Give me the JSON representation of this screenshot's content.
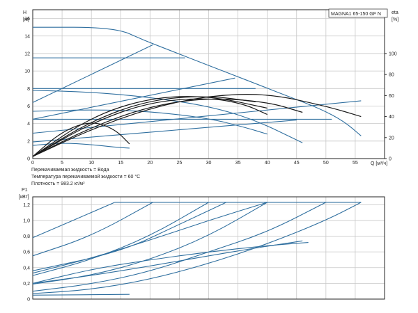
{
  "chart_data": [
    {
      "type": "line",
      "title": "MAGNA1 65-150 GF N",
      "ylabel": "H",
      "ylabel_unit": "[м]",
      "xlabel": "Q [м³/ч]",
      "y2label": "eta",
      "y2label_unit": "[%]",
      "xlim": [
        0,
        60
      ],
      "ylim": [
        0,
        17
      ],
      "y2lim": [
        0,
        100
      ],
      "x_ticks": [
        "0",
        "5",
        "10",
        "15",
        "20",
        "25",
        "30",
        "35",
        "40",
        "45",
        "50",
        "55"
      ],
      "y_ticks": [
        "0",
        "2",
        "4",
        "6",
        "8",
        "10",
        "12",
        "14",
        "16"
      ],
      "y2_ticks": [
        "0",
        "20",
        "40",
        "60",
        "80",
        "100"
      ],
      "grid": true,
      "notes": [
        "Перекачиваемая жидкость = Вода",
        "Температура перекачиваемой жидкости = 60 °C",
        "Плотность = 983.2 кг/м³"
      ],
      "series": [
        {
          "name": "H max",
          "kind": "head",
          "x": [
            0,
            14,
            19,
            24,
            29,
            34,
            39,
            44,
            49,
            53,
            56
          ],
          "y": [
            15,
            15,
            13.5,
            12.2,
            10.9,
            9.6,
            8.3,
            7,
            5.7,
            4.3,
            2.6
          ]
        },
        {
          "name": "H prop 1",
          "kind": "head",
          "x": [
            0,
            20.5
          ],
          "y": [
            6.4,
            13
          ]
        },
        {
          "name": "H prop 2",
          "kind": "head",
          "x": [
            0,
            34.5
          ],
          "y": [
            4.5,
            9.2
          ]
        },
        {
          "name": "H prop 3",
          "kind": "head",
          "x": [
            0,
            56
          ],
          "y": [
            2.9,
            6.6
          ]
        },
        {
          "name": "H prop 4",
          "kind": "head",
          "x": [
            0,
            45
          ],
          "y": [
            1.9,
            4.4
          ]
        },
        {
          "name": "H const 1",
          "kind": "head",
          "x": [
            0,
            26
          ],
          "y": [
            11.5,
            11.5
          ]
        },
        {
          "name": "H const 2",
          "kind": "head",
          "x": [
            0,
            38
          ],
          "y": [
            8,
            8
          ]
        },
        {
          "name": "H const 3",
          "kind": "head",
          "x": [
            0,
            51
          ],
          "y": [
            4.5,
            4.5
          ]
        },
        {
          "name": "H curve 1",
          "kind": "head",
          "x": [
            0,
            10,
            20,
            30,
            38,
            46
          ],
          "y": [
            7.8,
            7.6,
            7,
            6,
            4.4,
            1.8
          ]
        },
        {
          "name": "H curve 2",
          "kind": "head",
          "x": [
            0,
            10,
            20,
            30,
            36,
            40
          ],
          "y": [
            5.4,
            5.6,
            5.4,
            4.6,
            3.6,
            2.8
          ]
        },
        {
          "name": "H curve 3",
          "kind": "head",
          "x": [
            0,
            5,
            10,
            14,
            16.5
          ],
          "y": [
            1.5,
            1.8,
            1.6,
            1.3,
            1.2
          ]
        },
        {
          "name": "Eta 1",
          "kind": "eta",
          "x": [
            0,
            10,
            20,
            30,
            40,
            50,
            56
          ],
          "y": [
            2,
            28,
            48,
            60,
            62,
            50,
            40
          ]
        },
        {
          "name": "Eta 2",
          "kind": "eta",
          "x": [
            0,
            10,
            20,
            30,
            40,
            46
          ],
          "y": [
            2,
            30,
            50,
            58,
            54,
            44
          ]
        },
        {
          "name": "Eta 3",
          "kind": "eta",
          "x": [
            0,
            10,
            20,
            30,
            36,
            40
          ],
          "y": [
            2,
            34,
            54,
            58,
            52,
            42
          ]
        },
        {
          "name": "Eta 4",
          "kind": "eta",
          "x": [
            0,
            10,
            20,
            30,
            40
          ],
          "y": [
            2,
            40,
            58,
            60,
            48
          ]
        },
        {
          "name": "Eta 5",
          "kind": "eta",
          "x": [
            0,
            5,
            10,
            14,
            16.5
          ],
          "y": [
            2,
            26,
            36,
            28,
            14
          ]
        },
        {
          "name": "Eta 6",
          "kind": "eta",
          "x": [
            0,
            10,
            20,
            30,
            38
          ],
          "y": [
            2,
            36,
            56,
            60,
            54
          ]
        }
      ]
    },
    {
      "type": "line",
      "title": "",
      "ylabel": "P1",
      "ylabel_unit": "[кВт]",
      "xlabel": "",
      "xlim": [
        0,
        60
      ],
      "ylim": [
        0,
        1.3
      ],
      "y_ticks": [
        "0",
        "0,2",
        "0,4",
        "0,6",
        "0,8",
        "1,0",
        "1,2"
      ],
      "grid": true,
      "series": [
        {
          "name": "P limit",
          "x": [
            14,
            56
          ],
          "y": [
            1.23,
            1.23
          ]
        },
        {
          "name": "P1",
          "x": [
            0,
            14
          ],
          "y": [
            0.78,
            1.23
          ]
        },
        {
          "name": "P2",
          "x": [
            0,
            10,
            20.5
          ],
          "y": [
            0.55,
            0.8,
            1.23
          ]
        },
        {
          "name": "P3",
          "x": [
            0,
            10,
            20,
            30
          ],
          "y": [
            0.3,
            0.5,
            0.8,
            1.23
          ]
        },
        {
          "name": "P4",
          "x": [
            0,
            10,
            20,
            30,
            40
          ],
          "y": [
            0.19,
            0.3,
            0.5,
            0.8,
            1.23
          ]
        },
        {
          "name": "P5",
          "x": [
            0,
            10,
            20,
            30,
            40,
            50
          ],
          "y": [
            0.1,
            0.19,
            0.35,
            0.6,
            0.85,
            1.23
          ]
        },
        {
          "name": "P6",
          "x": [
            0,
            10,
            20,
            30,
            40,
            50,
            56
          ],
          "y": [
            0.07,
            0.12,
            0.25,
            0.45,
            0.7,
            1.0,
            1.23
          ]
        },
        {
          "name": "P7",
          "x": [
            0,
            10,
            20,
            30,
            38,
            46
          ],
          "y": [
            0.2,
            0.3,
            0.42,
            0.55,
            0.65,
            0.74
          ]
        },
        {
          "name": "P8",
          "x": [
            0,
            10,
            20,
            30,
            40
          ],
          "y": [
            0.33,
            0.52,
            0.75,
            1.0,
            1.23
          ]
        },
        {
          "name": "P9",
          "x": [
            0,
            15,
            25,
            33
          ],
          "y": [
            0.36,
            0.6,
            0.95,
            1.23
          ]
        },
        {
          "name": "P10",
          "x": [
            0,
            10,
            20,
            30,
            40,
            47
          ],
          "y": [
            0.2,
            0.38,
            0.5,
            0.6,
            0.68,
            0.72
          ]
        },
        {
          "name": "P11",
          "x": [
            0,
            16.5
          ],
          "y": [
            0.05,
            0.06
          ]
        }
      ]
    }
  ]
}
